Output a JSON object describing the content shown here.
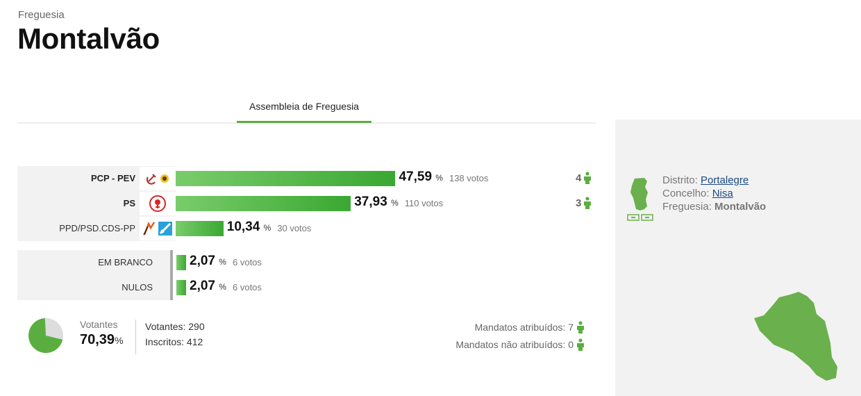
{
  "header": {
    "breadcrumb": "Freguesia",
    "title": "Montalvão"
  },
  "tabs": [
    {
      "label": "Assembleia de Freguesia",
      "active": true
    }
  ],
  "colors": {
    "accent": "#5aae40",
    "bar_start": "#7acc6b",
    "bar_end": "#3aa832",
    "seat_icon": "#5aae40"
  },
  "chart_data": {
    "type": "bar",
    "orientation": "horizontal",
    "xlim": [
      0,
      100
    ],
    "parties": [
      {
        "name": "PCP - PEV",
        "percent": 47.59,
        "percent_label": "47,59",
        "votes_label": "138 votos",
        "seats": "4",
        "icons": [
          "hammer-sickle-icon",
          "sunflower-icon"
        ]
      },
      {
        "name": "PS",
        "percent": 37.93,
        "percent_label": "37,93",
        "votes_label": "110 votos",
        "seats": "3",
        "icons": [
          "ps-fist-rose-icon"
        ]
      },
      {
        "name": "PPD/PSD.CDS-PP",
        "percent": 10.34,
        "percent_label": "10,34",
        "votes_label": "30 votos",
        "seats": "",
        "icons": [
          "psd-arrows-icon",
          "cds-logo-icon"
        ]
      }
    ],
    "other": [
      {
        "name": "EM BRANCO",
        "percent": 2.07,
        "percent_label": "2,07",
        "votes_label": "6 votos"
      },
      {
        "name": "NULOS",
        "percent": 2.07,
        "percent_label": "2,07",
        "votes_label": "6 votos"
      }
    ],
    "percent_sign": "%"
  },
  "summary": {
    "turnout_label": "Votantes",
    "turnout_value": "70,39",
    "turnout_fraction": 0.7039,
    "percent_sign": "%",
    "votantes": "Votantes: 290",
    "inscritos": "Inscritos: 412",
    "mandatos_atribuidos": "Mandatos atribuídos: 7",
    "mandatos_nao_atribuidos": "Mandatos não atribuídos: 0"
  },
  "location": {
    "distrito_label": "Distrito:",
    "distrito": "Portalegre",
    "concelho_label": "Concelho:",
    "concelho": "Nisa",
    "freguesia_label": "Freguesia:",
    "freguesia": "Montalvão"
  }
}
